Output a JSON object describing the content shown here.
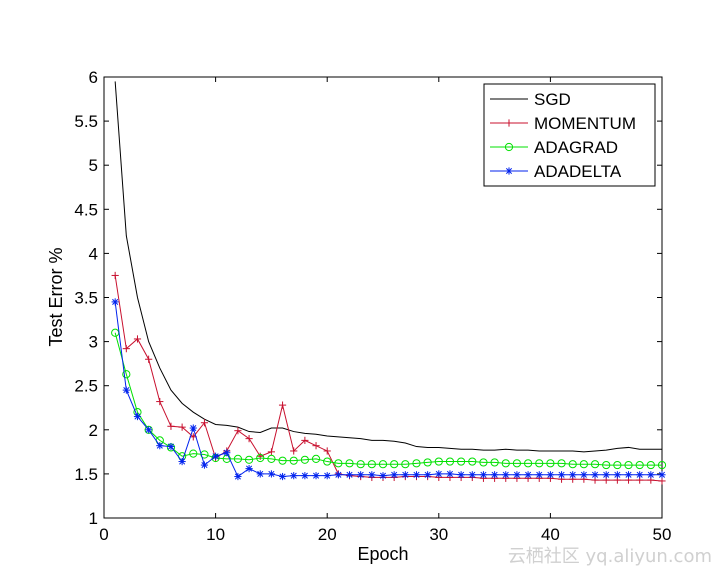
{
  "chart_data": {
    "type": "line",
    "title": "",
    "xlabel": "Epoch",
    "ylabel": "Test Error %",
    "xlim": [
      0,
      50
    ],
    "ylim": [
      1,
      6
    ],
    "xticks": [
      "0",
      "10",
      "20",
      "30",
      "40",
      "50"
    ],
    "yticks": [
      "1",
      "1.5",
      "2",
      "2.5",
      "3",
      "3.5",
      "4",
      "4.5",
      "5",
      "5.5",
      "6"
    ],
    "legend_position": "top-right",
    "x": [
      1,
      2,
      3,
      4,
      5,
      6,
      7,
      8,
      9,
      10,
      11,
      12,
      13,
      14,
      15,
      16,
      17,
      18,
      19,
      20,
      21,
      22,
      23,
      24,
      25,
      26,
      27,
      28,
      29,
      30,
      31,
      32,
      33,
      34,
      35,
      36,
      37,
      38,
      39,
      40,
      41,
      42,
      43,
      44,
      45,
      46,
      47,
      48,
      49,
      50
    ],
    "series": [
      {
        "name": "SGD",
        "color": "#000000",
        "marker": "none",
        "values": [
          5.95,
          4.2,
          3.5,
          3.0,
          2.7,
          2.45,
          2.3,
          2.2,
          2.12,
          2.06,
          2.05,
          2.03,
          1.98,
          1.97,
          2.02,
          2.02,
          1.98,
          1.96,
          1.95,
          1.93,
          1.92,
          1.91,
          1.9,
          1.88,
          1.88,
          1.87,
          1.85,
          1.81,
          1.8,
          1.8,
          1.79,
          1.78,
          1.78,
          1.77,
          1.77,
          1.78,
          1.77,
          1.77,
          1.76,
          1.76,
          1.76,
          1.76,
          1.75,
          1.76,
          1.77,
          1.79,
          1.8,
          1.78,
          1.78,
          1.78
        ]
      },
      {
        "name": "MOMENTUM",
        "color": "#c8102e",
        "marker": "plus",
        "values": [
          3.75,
          2.92,
          3.03,
          2.8,
          2.32,
          2.04,
          2.03,
          1.92,
          2.08,
          1.68,
          1.76,
          1.99,
          1.9,
          1.7,
          1.75,
          2.28,
          1.76,
          1.88,
          1.82,
          1.76,
          1.5,
          1.48,
          1.47,
          1.46,
          1.46,
          1.46,
          1.47,
          1.47,
          1.47,
          1.46,
          1.46,
          1.46,
          1.46,
          1.45,
          1.45,
          1.45,
          1.45,
          1.45,
          1.45,
          1.45,
          1.44,
          1.44,
          1.44,
          1.43,
          1.43,
          1.43,
          1.43,
          1.43,
          1.43,
          1.42
        ]
      },
      {
        "name": "ADAGRAD",
        "color": "#00e000",
        "marker": "circle",
        "values": [
          3.1,
          2.63,
          2.2,
          2.0,
          1.88,
          1.8,
          1.7,
          1.73,
          1.72,
          1.68,
          1.67,
          1.67,
          1.66,
          1.68,
          1.67,
          1.65,
          1.65,
          1.66,
          1.67,
          1.64,
          1.62,
          1.62,
          1.61,
          1.61,
          1.61,
          1.61,
          1.61,
          1.62,
          1.63,
          1.64,
          1.64,
          1.64,
          1.64,
          1.63,
          1.63,
          1.62,
          1.62,
          1.62,
          1.62,
          1.62,
          1.62,
          1.61,
          1.61,
          1.61,
          1.6,
          1.6,
          1.6,
          1.6,
          1.6,
          1.6
        ]
      },
      {
        "name": "ADADELTA",
        "color": "#0022ee",
        "marker": "asterisk",
        "values": [
          3.45,
          2.45,
          2.15,
          2.0,
          1.82,
          1.81,
          1.64,
          2.02,
          1.6,
          1.7,
          1.74,
          1.47,
          1.56,
          1.5,
          1.5,
          1.47,
          1.48,
          1.48,
          1.48,
          1.48,
          1.49,
          1.49,
          1.49,
          1.49,
          1.48,
          1.49,
          1.49,
          1.49,
          1.49,
          1.5,
          1.5,
          1.49,
          1.49,
          1.49,
          1.49,
          1.49,
          1.49,
          1.49,
          1.49,
          1.49,
          1.49,
          1.49,
          1.49,
          1.49,
          1.49,
          1.49,
          1.49,
          1.49,
          1.49,
          1.49
        ]
      }
    ]
  },
  "watermark": "云栖社区 yq.aliyun.com"
}
